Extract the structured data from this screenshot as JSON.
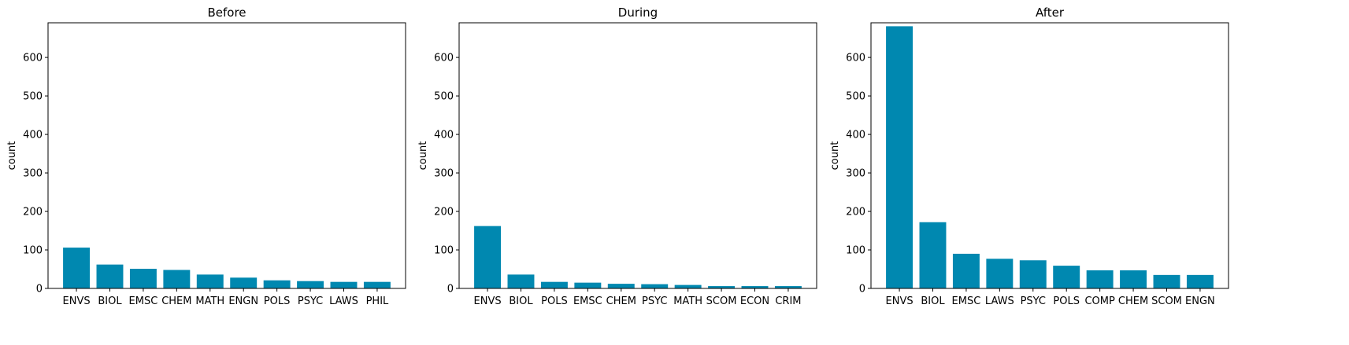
{
  "figure": {
    "bar_color": "#0088B0",
    "background": "#ffffff"
  },
  "chart_data": [
    {
      "type": "bar",
      "title": "Before",
      "ylabel": "count",
      "ylim": [
        0,
        690
      ],
      "yticks": [
        0,
        100,
        200,
        300,
        400,
        500,
        600
      ],
      "categories": [
        "ENVS",
        "BIOL",
        "EMSC",
        "CHEM",
        "MATH",
        "ENGN",
        "POLS",
        "PSYC",
        "LAWS",
        "PHIL"
      ],
      "values": [
        106,
        62,
        51,
        48,
        36,
        28,
        21,
        19,
        17,
        17
      ]
    },
    {
      "type": "bar",
      "title": "During",
      "ylabel": "count",
      "ylim": [
        0,
        690
      ],
      "yticks": [
        0,
        100,
        200,
        300,
        400,
        500,
        600
      ],
      "categories": [
        "ENVS",
        "BIOL",
        "POLS",
        "EMSC",
        "CHEM",
        "PSYC",
        "MATH",
        "SCOM",
        "ECON",
        "CRIM"
      ],
      "values": [
        162,
        36,
        17,
        15,
        12,
        11,
        9,
        6,
        6,
        6
      ]
    },
    {
      "type": "bar",
      "title": "After",
      "ylabel": "count",
      "ylim": [
        0,
        690
      ],
      "yticks": [
        0,
        100,
        200,
        300,
        400,
        500,
        600
      ],
      "categories": [
        "ENVS",
        "BIOL",
        "EMSC",
        "LAWS",
        "PSYC",
        "POLS",
        "COMP",
        "CHEM",
        "SCOM",
        "ENGN"
      ],
      "values": [
        681,
        172,
        90,
        77,
        73,
        59,
        47,
        47,
        35,
        35
      ]
    }
  ]
}
